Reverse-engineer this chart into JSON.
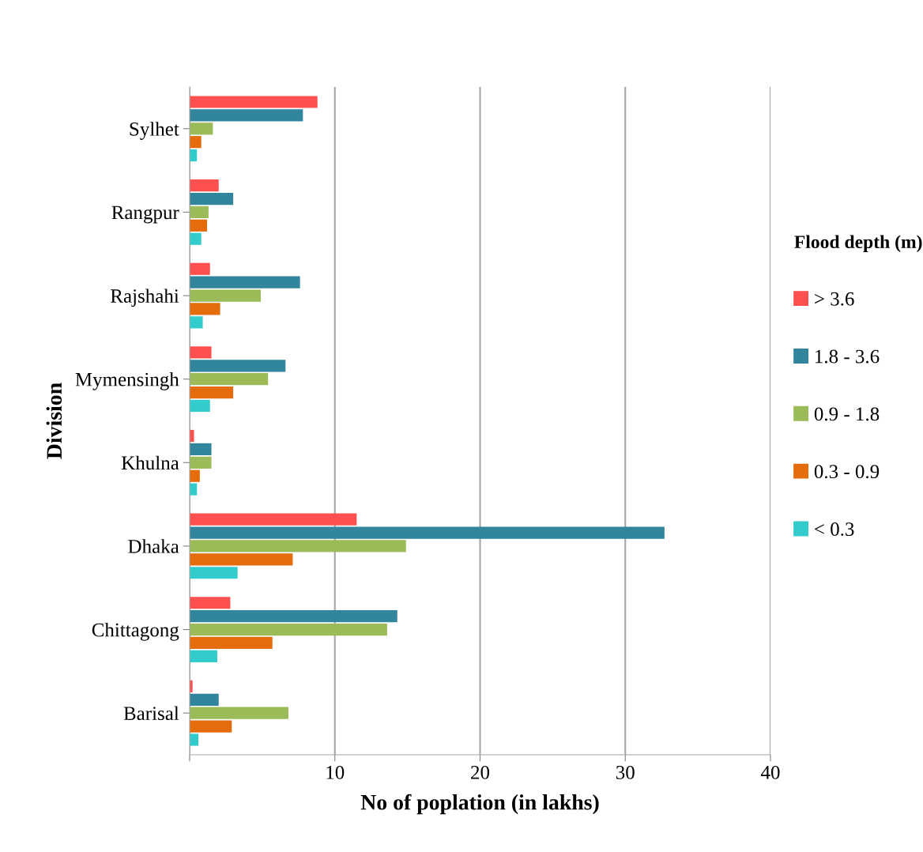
{
  "chart_data": {
    "type": "bar",
    "orientation": "horizontal",
    "xlabel": "No of poplation (in lakhs)",
    "ylabel": "Division",
    "legend_title": "Flood depth (m)",
    "categories": [
      "Sylhet",
      "Rangpur",
      "Rajshahi",
      "Mymensingh",
      "Khulna",
      "Dhaka",
      "Chittagong",
      "Barisal"
    ],
    "series": [
      {
        "name": "> 3.6",
        "color": "#ff5050",
        "values": [
          8.8,
          2.0,
          1.4,
          1.5,
          0.3,
          11.5,
          2.8,
          0.2
        ]
      },
      {
        "name": "1.8 - 3.6",
        "color": "#31859c",
        "values": [
          7.8,
          3.0,
          7.6,
          6.6,
          1.5,
          32.7,
          14.3,
          2.0
        ]
      },
      {
        "name": "0.9 - 1.8",
        "color": "#9bbb59",
        "values": [
          1.6,
          1.3,
          4.9,
          5.4,
          1.5,
          14.9,
          13.6,
          6.8
        ]
      },
      {
        "name": "0.3 - 0.9",
        "color": "#e46c0a",
        "values": [
          0.8,
          1.2,
          2.1,
          3.0,
          0.7,
          7.1,
          5.7,
          2.9
        ]
      },
      {
        "name": "< 0.3",
        "color": "#33cccc",
        "values": [
          0.5,
          0.8,
          0.9,
          1.4,
          0.5,
          3.3,
          1.9,
          0.6
        ]
      }
    ],
    "xlim": [
      0,
      40
    ],
    "xticks": [
      {
        "value": 0,
        "label": null
      },
      10,
      20,
      30,
      40
    ],
    "grid": "x",
    "legend": "right"
  }
}
